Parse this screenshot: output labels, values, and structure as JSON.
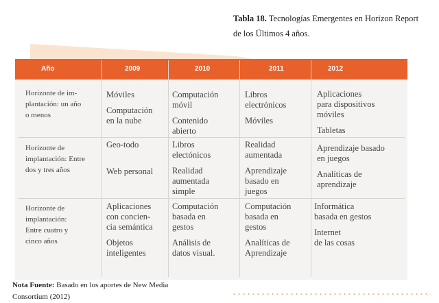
{
  "caption": {
    "label": "Tabla 18.",
    "line1": " Tecnologías Emergentes en Horizon Report",
    "line2": "de los Últimos 4 años."
  },
  "table": {
    "headers": [
      "Año",
      "2009",
      "2010",
      "2011",
      "2012"
    ],
    "rows": [
      {
        "label": "Horizonte de im-\nplantación: un año\no menos",
        "cells": [
          [
            "Móviles",
            "Computación\nen la nube"
          ],
          [
            "Computación\nmóvil",
            "Contenido\nabierto"
          ],
          [
            "Libros\nelectrónicos",
            "Móviles"
          ],
          [
            "Aplicaciones\npara dispositivos\nmóviles",
            "Tabletas"
          ]
        ]
      },
      {
        "label": "Horizonte de\nimplantación: Entre\ndos y tres años",
        "cells": [
          [
            "Geo-todo",
            "Web personal"
          ],
          [
            "Libros\nelectónicos",
            "Realidad\naumentada\nsimple"
          ],
          [
            "Realidad\naumentada",
            "Aprendizaje\nbasado en\njuegos"
          ],
          [
            "Aprendizaje basado\nen juegos",
            "Analíticas de\naprendizaje"
          ]
        ]
      },
      {
        "label": "Horizonte de\nimplantación:\nEntre cuatro y\ncinco años",
        "cells": [
          [
            "Aplicaciones\ncon concien-\ncia semántica",
            "Objetos\ninteligentes"
          ],
          [
            "Computación\nbasada en\ngestos",
            " Análisis de\ndatos visual."
          ],
          [
            "Computación\nbasada en\ngestos",
            "Analíticas de\nAprendizaje"
          ],
          [
            "Informática\nbasada en gestos",
            "Internet\nde las cosas"
          ]
        ]
      }
    ]
  },
  "note": {
    "label": "Nota Fuente:",
    "line1": " Basado en los aportes de New Media",
    "line2": "Consortium (2012)"
  },
  "colors": {
    "accent": "#e8602a",
    "tab": "#fbe4cf",
    "card": "#f4f3f1"
  }
}
